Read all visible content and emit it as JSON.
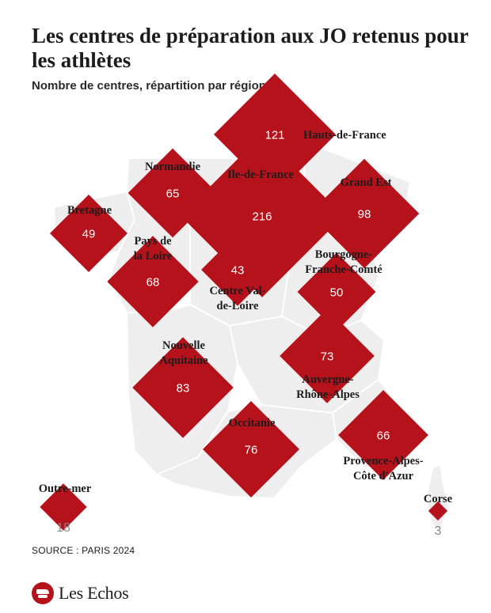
{
  "title": "Les centres de préparation aux JO retenus pour les athlètes",
  "subtitle": "Nombre de centres, répartition par région",
  "source": "SOURCE : PARIS 2024",
  "brand": "Les Echos",
  "colors": {
    "marker": "#b5121b",
    "land": "#eeeeee",
    "border": "#ffffff"
  },
  "regions": [
    {
      "id": "hauts-de-france",
      "label": [
        "Hauts-de-France"
      ],
      "value": 121
    },
    {
      "id": "normandie",
      "label": [
        "Normandie"
      ],
      "value": 65
    },
    {
      "id": "ile-de-france",
      "label": [
        "Ile-de-France"
      ],
      "value": 216
    },
    {
      "id": "grand-est",
      "label": [
        "Grand Est"
      ],
      "value": 98
    },
    {
      "id": "bretagne",
      "label": [
        "Bretagne"
      ],
      "value": 49
    },
    {
      "id": "pays-de-la-loire",
      "label": [
        "Pays de",
        "la Loire"
      ],
      "value": 68
    },
    {
      "id": "centre-val-de-loire",
      "label": [
        "Centre Val-",
        "de-Loire"
      ],
      "value": 43
    },
    {
      "id": "bourgogne-franche-comte",
      "label": [
        "Bourgogne-",
        "Franche-Comté"
      ],
      "value": 50
    },
    {
      "id": "nouvelle-aquitaine",
      "label": [
        "Nouvelle",
        "Aquitaine"
      ],
      "value": 83
    },
    {
      "id": "auvergne-rhone-alpes",
      "label": [
        "Auvergne-",
        "Rhône-Alpes"
      ],
      "value": 73
    },
    {
      "id": "occitanie",
      "label": [
        "Occitanie"
      ],
      "value": 76
    },
    {
      "id": "provence-alpes-cote-dazur",
      "label": [
        "Provence-Alpes-",
        "Côte d'Azur"
      ],
      "value": 66
    },
    {
      "id": "outre-mer",
      "label": [
        "Outre-mer"
      ],
      "value": 18
    },
    {
      "id": "corse",
      "label": [
        "Corse"
      ],
      "value": 3
    }
  ]
}
